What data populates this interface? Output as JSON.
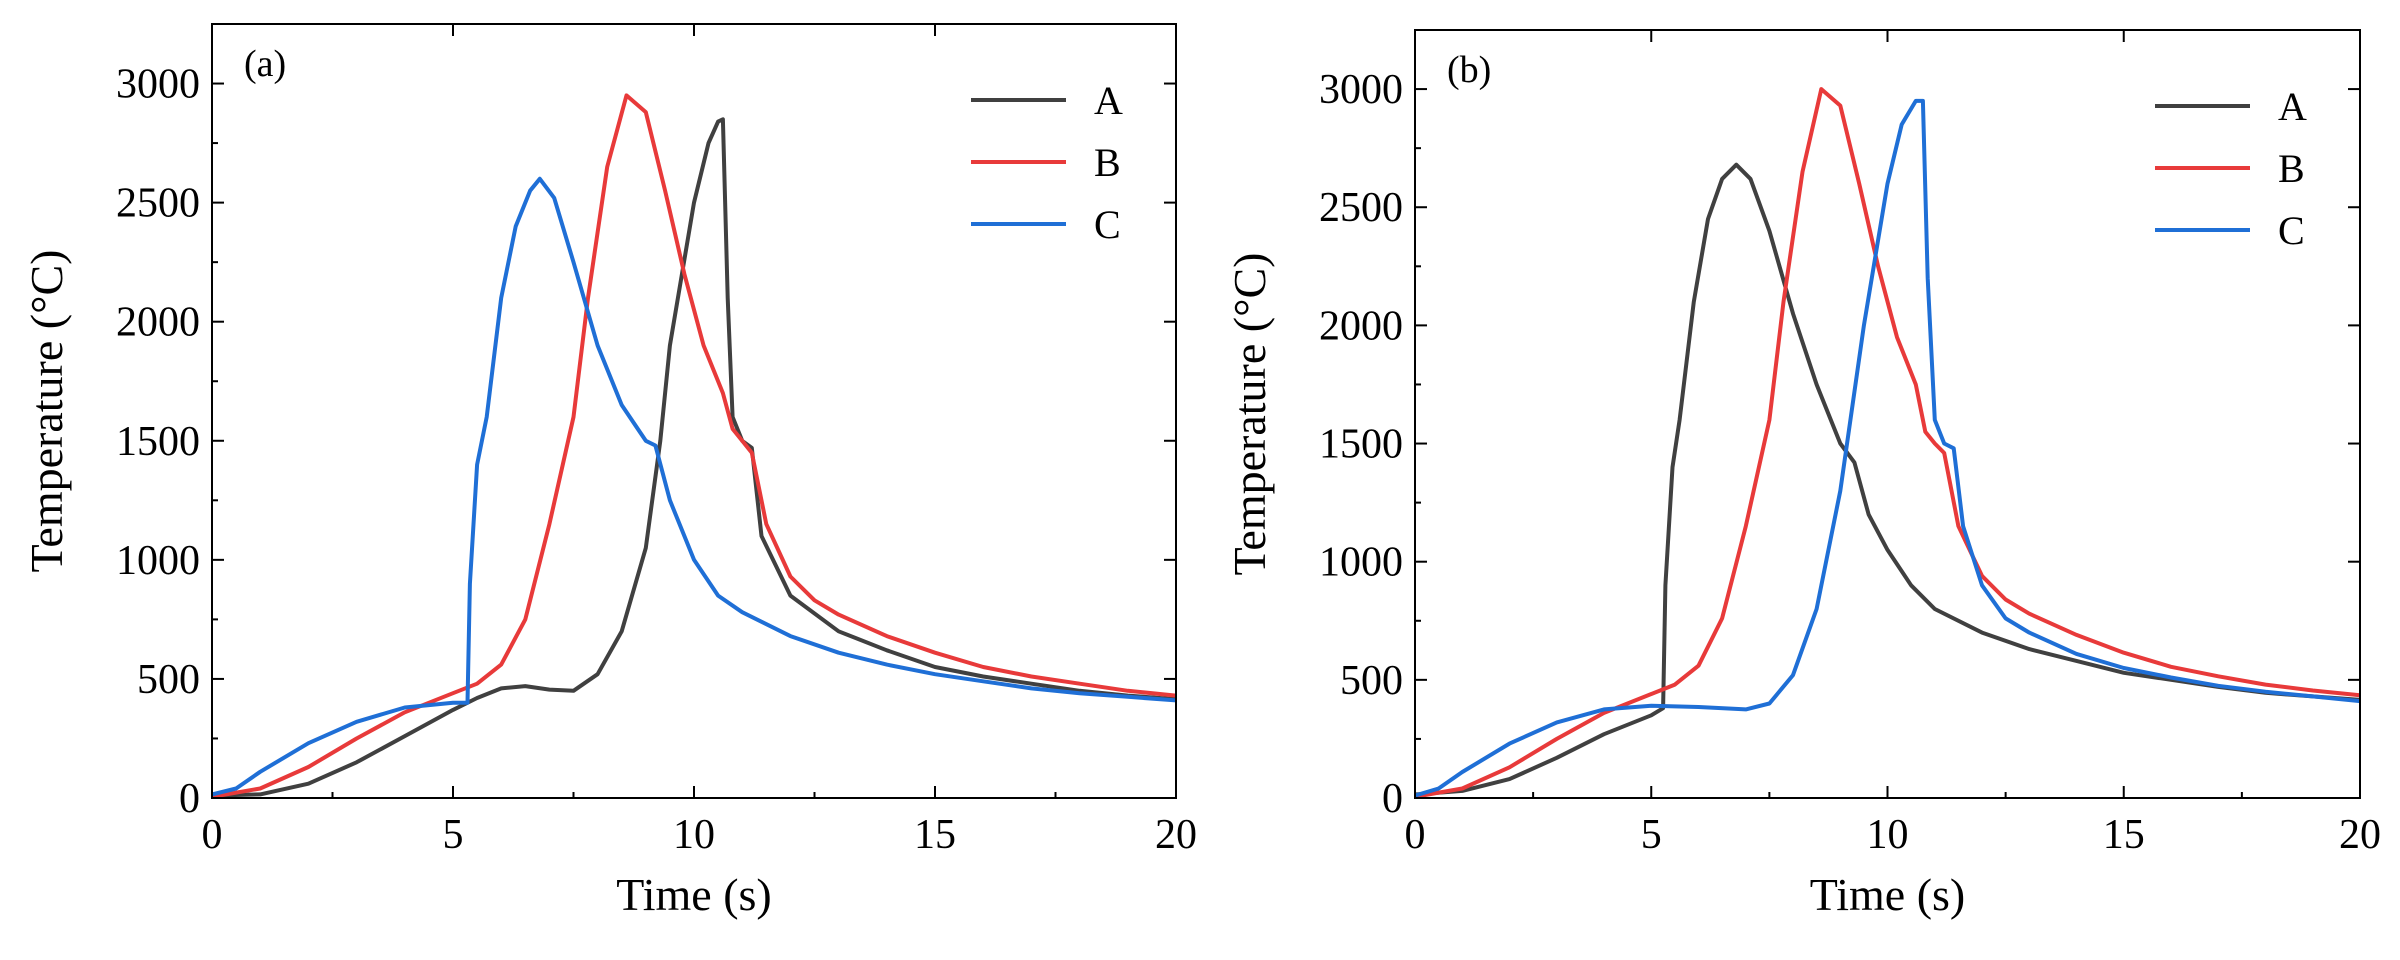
{
  "chart_data": [
    {
      "type": "line",
      "panel_label": "(a)",
      "xlabel": "Time (s)",
      "ylabel": "Temperature (°C)",
      "xlim": [
        0,
        20
      ],
      "ylim": [
        0,
        3250
      ],
      "xticks": [
        0,
        5,
        10,
        15,
        20
      ],
      "yticks": [
        0,
        500,
        1000,
        1500,
        2000,
        2500,
        3000
      ],
      "legend_position": "top-right",
      "series": [
        {
          "name": "A",
          "color": "#404040",
          "points": [
            [
              0,
              10
            ],
            [
              1,
              15
            ],
            [
              2,
              60
            ],
            [
              3,
              150
            ],
            [
              4,
              260
            ],
            [
              5,
              370
            ],
            [
              5.5,
              420
            ],
            [
              6,
              460
            ],
            [
              6.5,
              470
            ],
            [
              7,
              455
            ],
            [
              7.5,
              450
            ],
            [
              8,
              520
            ],
            [
              8.5,
              700
            ],
            [
              9,
              1050
            ],
            [
              9.3,
              1500
            ],
            [
              9.5,
              1900
            ],
            [
              10,
              2500
            ],
            [
              10.3,
              2750
            ],
            [
              10.5,
              2840
            ],
            [
              10.6,
              2850
            ],
            [
              10.7,
              2100
            ],
            [
              10.8,
              1600
            ],
            [
              11,
              1500
            ],
            [
              11.2,
              1470
            ],
            [
              11.4,
              1100
            ],
            [
              12,
              850
            ],
            [
              13,
              700
            ],
            [
              14,
              620
            ],
            [
              15,
              550
            ],
            [
              16,
              510
            ],
            [
              17,
              480
            ],
            [
              18,
              450
            ],
            [
              19,
              430
            ],
            [
              20,
              415
            ]
          ]
        },
        {
          "name": "B",
          "color": "#e83a3a",
          "points": [
            [
              0,
              5
            ],
            [
              1,
              40
            ],
            [
              2,
              130
            ],
            [
              3,
              250
            ],
            [
              4,
              360
            ],
            [
              5,
              440
            ],
            [
              5.5,
              480
            ],
            [
              6,
              560
            ],
            [
              6.5,
              750
            ],
            [
              7,
              1150
            ],
            [
              7.5,
              1600
            ],
            [
              7.8,
              2100
            ],
            [
              8.2,
              2650
            ],
            [
              8.6,
              2950
            ],
            [
              9,
              2880
            ],
            [
              9.4,
              2550
            ],
            [
              9.8,
              2200
            ],
            [
              10.2,
              1900
            ],
            [
              10.6,
              1700
            ],
            [
              10.8,
              1550
            ],
            [
              11,
              1500
            ],
            [
              11.2,
              1450
            ],
            [
              11.5,
              1150
            ],
            [
              12,
              930
            ],
            [
              12.5,
              830
            ],
            [
              13,
              770
            ],
            [
              14,
              680
            ],
            [
              15,
              610
            ],
            [
              16,
              550
            ],
            [
              17,
              510
            ],
            [
              18,
              480
            ],
            [
              19,
              450
            ],
            [
              20,
              430
            ]
          ]
        },
        {
          "name": "C",
          "color": "#1f6fd6",
          "points": [
            [
              0,
              15
            ],
            [
              0.5,
              40
            ],
            [
              1,
              110
            ],
            [
              2,
              230
            ],
            [
              3,
              320
            ],
            [
              4,
              380
            ],
            [
              5,
              400
            ],
            [
              5.3,
              400
            ],
            [
              5.35,
              900
            ],
            [
              5.5,
              1400
            ],
            [
              5.7,
              1600
            ],
            [
              6,
              2100
            ],
            [
              6.3,
              2400
            ],
            [
              6.6,
              2550
            ],
            [
              6.8,
              2600
            ],
            [
              7.1,
              2520
            ],
            [
              7.5,
              2250
            ],
            [
              8,
              1900
            ],
            [
              8.5,
              1650
            ],
            [
              9,
              1500
            ],
            [
              9.2,
              1480
            ],
            [
              9.5,
              1250
            ],
            [
              10,
              1000
            ],
            [
              10.5,
              850
            ],
            [
              11,
              780
            ],
            [
              12,
              680
            ],
            [
              13,
              610
            ],
            [
              14,
              560
            ],
            [
              15,
              520
            ],
            [
              16,
              490
            ],
            [
              17,
              460
            ],
            [
              18,
              440
            ],
            [
              19,
              425
            ],
            [
              20,
              410
            ]
          ]
        }
      ]
    },
    {
      "type": "line",
      "panel_label": "(b)",
      "xlabel": "Time (s)",
      "ylabel": "Temperature (°C)",
      "xlim": [
        0,
        20
      ],
      "ylim": [
        0,
        3250
      ],
      "xticks": [
        0,
        5,
        10,
        15,
        20
      ],
      "yticks": [
        0,
        500,
        1000,
        1500,
        2000,
        2500,
        3000
      ],
      "legend_position": "top-right",
      "series": [
        {
          "name": "A",
          "color": "#404040",
          "points": [
            [
              0,
              15
            ],
            [
              1,
              30
            ],
            [
              2,
              80
            ],
            [
              3,
              170
            ],
            [
              4,
              270
            ],
            [
              5,
              350
            ],
            [
              5.25,
              380
            ],
            [
              5.3,
              900
            ],
            [
              5.45,
              1400
            ],
            [
              5.6,
              1600
            ],
            [
              5.9,
              2100
            ],
            [
              6.2,
              2450
            ],
            [
              6.5,
              2620
            ],
            [
              6.8,
              2680
            ],
            [
              7.1,
              2620
            ],
            [
              7.5,
              2400
            ],
            [
              8,
              2050
            ],
            [
              8.5,
              1750
            ],
            [
              9,
              1500
            ],
            [
              9.3,
              1420
            ],
            [
              9.6,
              1200
            ],
            [
              10,
              1050
            ],
            [
              10.5,
              900
            ],
            [
              11,
              800
            ],
            [
              12,
              700
            ],
            [
              13,
              630
            ],
            [
              14,
              580
            ],
            [
              15,
              530
            ],
            [
              16,
              500
            ],
            [
              17,
              470
            ],
            [
              18,
              445
            ],
            [
              19,
              430
            ],
            [
              20,
              415
            ]
          ]
        },
        {
          "name": "B",
          "color": "#e83a3a",
          "points": [
            [
              0,
              5
            ],
            [
              1,
              40
            ],
            [
              2,
              130
            ],
            [
              3,
              250
            ],
            [
              4,
              360
            ],
            [
              5,
              440
            ],
            [
              5.5,
              480
            ],
            [
              6,
              560
            ],
            [
              6.5,
              760
            ],
            [
              7,
              1150
            ],
            [
              7.5,
              1600
            ],
            [
              7.8,
              2100
            ],
            [
              8.2,
              2650
            ],
            [
              8.6,
              3000
            ],
            [
              9,
              2930
            ],
            [
              9.4,
              2600
            ],
            [
              9.8,
              2250
            ],
            [
              10.2,
              1950
            ],
            [
              10.6,
              1750
            ],
            [
              10.8,
              1550
            ],
            [
              11,
              1500
            ],
            [
              11.2,
              1460
            ],
            [
              11.5,
              1150
            ],
            [
              12,
              940
            ],
            [
              12.5,
              840
            ],
            [
              13,
              780
            ],
            [
              14,
              690
            ],
            [
              15,
              615
            ],
            [
              16,
              555
            ],
            [
              17,
              515
            ],
            [
              18,
              480
            ],
            [
              19,
              455
            ],
            [
              20,
              435
            ]
          ]
        },
        {
          "name": "C",
          "color": "#1f6fd6",
          "points": [
            [
              0,
              10
            ],
            [
              0.5,
              40
            ],
            [
              1,
              110
            ],
            [
              2,
              230
            ],
            [
              3,
              320
            ],
            [
              4,
              375
            ],
            [
              5,
              390
            ],
            [
              6,
              385
            ],
            [
              7,
              375
            ],
            [
              7.5,
              400
            ],
            [
              8,
              520
            ],
            [
              8.5,
              800
            ],
            [
              9,
              1300
            ],
            [
              9.5,
              2000
            ],
            [
              10,
              2600
            ],
            [
              10.3,
              2850
            ],
            [
              10.6,
              2950
            ],
            [
              10.75,
              2950
            ],
            [
              10.85,
              2200
            ],
            [
              11,
              1600
            ],
            [
              11.2,
              1500
            ],
            [
              11.4,
              1480
            ],
            [
              11.6,
              1150
            ],
            [
              12,
              900
            ],
            [
              12.5,
              760
            ],
            [
              13,
              700
            ],
            [
              14,
              610
            ],
            [
              15,
              550
            ],
            [
              16,
              510
            ],
            [
              17,
              475
            ],
            [
              18,
              450
            ],
            [
              19,
              430
            ],
            [
              20,
              410
            ]
          ]
        }
      ]
    }
  ]
}
